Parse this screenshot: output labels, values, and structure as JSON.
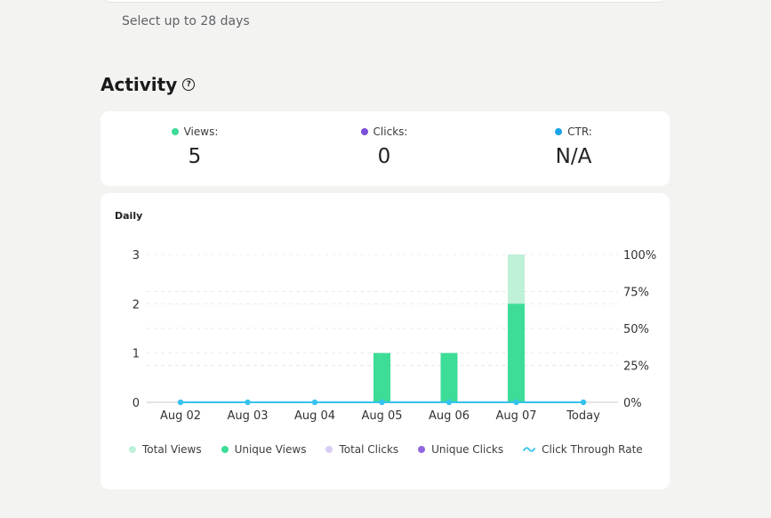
{
  "header": {
    "hint": "Select up to 28 days"
  },
  "activity": {
    "title": "Activity",
    "help_icon": "question-circle-icon",
    "stats": [
      {
        "label": "Views:",
        "value": "5",
        "color": "#3ddc97"
      },
      {
        "label": "Clicks:",
        "value": "0",
        "color": "#7b4fd8"
      },
      {
        "label": "CTR:",
        "value": "N/A",
        "color": "#1aa3e8"
      }
    ]
  },
  "chart_card": {
    "title": "Daily"
  },
  "chart_data": {
    "type": "bar",
    "categories": [
      "Aug 02",
      "Aug 03",
      "Aug 04",
      "Aug 05",
      "Aug 06",
      "Aug 07",
      "Today"
    ],
    "series": [
      {
        "name": "Total Views",
        "values": [
          0,
          0,
          0,
          1,
          1,
          3,
          0
        ],
        "color": "#bff0d8"
      },
      {
        "name": "Unique Views",
        "values": [
          0,
          0,
          0,
          1,
          1,
          2,
          0
        ],
        "color": "#3ddc97"
      },
      {
        "name": "Total Clicks",
        "values": [
          0,
          0,
          0,
          0,
          0,
          0,
          0
        ],
        "color": "#d9cdf5"
      },
      {
        "name": "Unique Clicks",
        "values": [
          0,
          0,
          0,
          0,
          0,
          0,
          0
        ],
        "color": "#9166e0"
      },
      {
        "name": "Click Through Rate",
        "type": "line",
        "axis": "right",
        "values": [
          0,
          0,
          0,
          0,
          0,
          0,
          0
        ],
        "color": "#35c3ee"
      }
    ],
    "y_left": {
      "ticks": [
        "0",
        "1",
        "2",
        "3"
      ],
      "ylim": [
        0,
        3
      ]
    },
    "y_right": {
      "ticks": [
        "0%",
        "25%",
        "50%",
        "75%",
        "100%"
      ],
      "ylim": [
        0,
        100
      ]
    },
    "grid": true,
    "legend_position": "bottom"
  }
}
